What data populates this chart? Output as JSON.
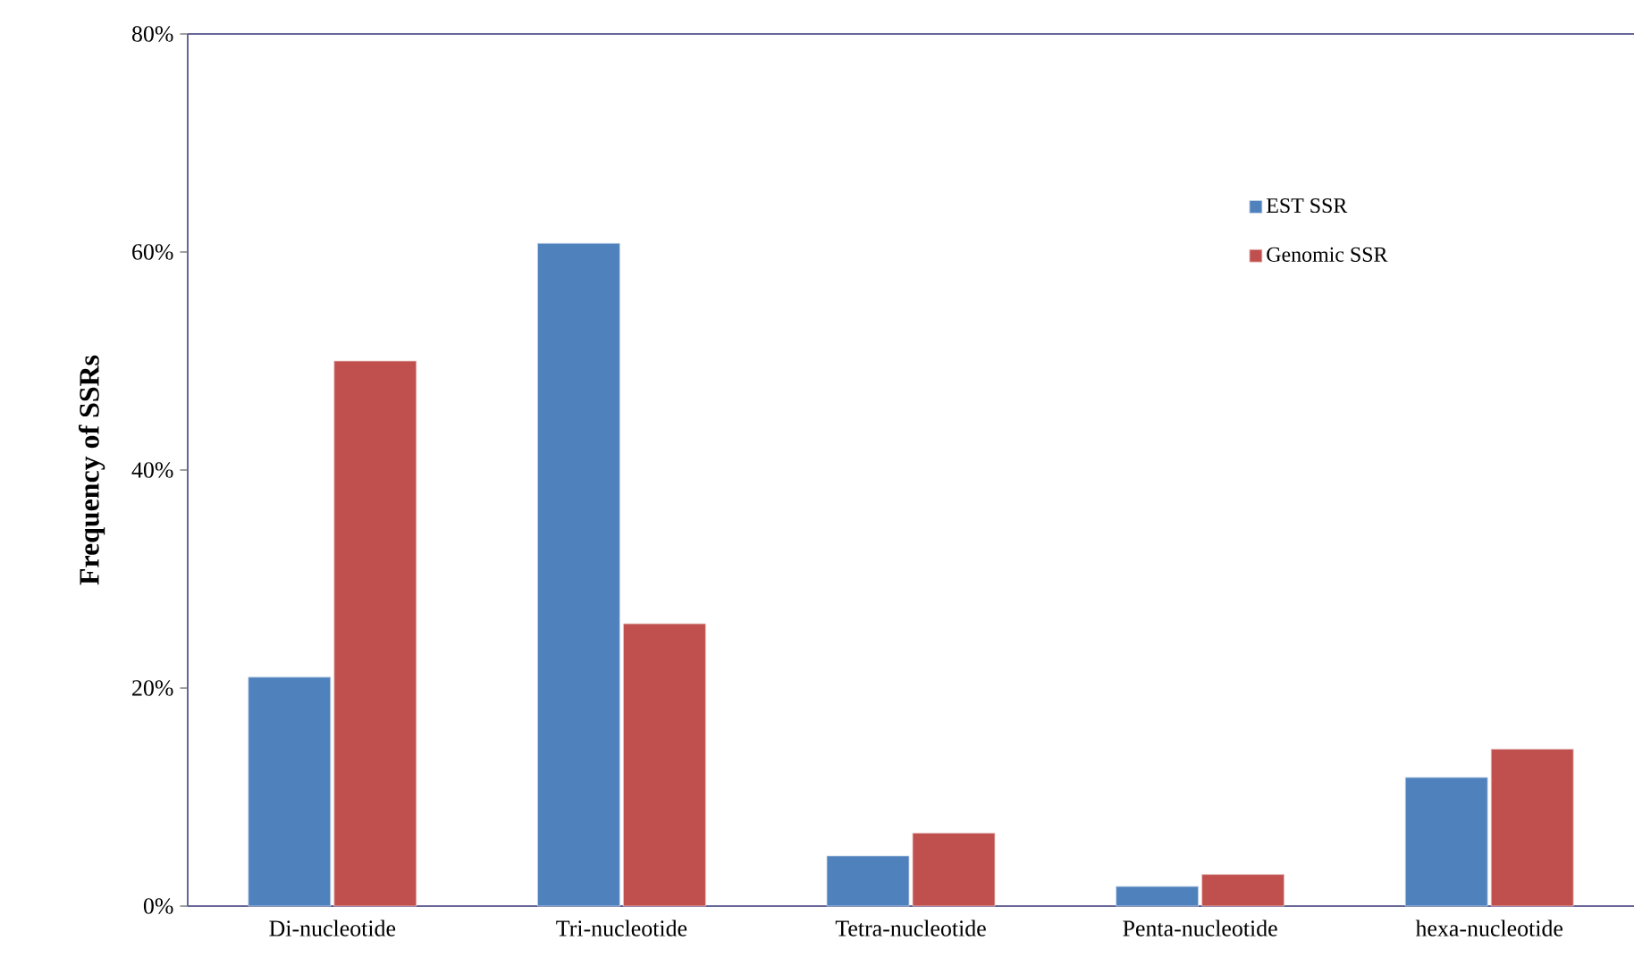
{
  "chart_data": {
    "type": "bar",
    "ylabel": "Frequency of  SSRs",
    "categories": [
      "Di-nucleotide",
      "Tri-nucleotide",
      "Tetra-nucleotide",
      "Penta-nucleotide",
      "hexa-nucleotide"
    ],
    "series": [
      {
        "name": "EST SSR",
        "color": "#4f81bd",
        "values": [
          21.0,
          60.8,
          4.6,
          1.8,
          11.8
        ]
      },
      {
        "name": "Genomic SSR",
        "color": "#c0504d",
        "values": [
          50,
          25.9,
          6.7,
          2.9,
          14.4
        ]
      }
    ],
    "ylim": [
      0,
      80
    ],
    "yticks": [
      {
        "value": 0,
        "label": "0%"
      },
      {
        "value": 20,
        "label": "20%"
      },
      {
        "value": 40,
        "label": "40%"
      },
      {
        "value": 60,
        "label": "60%"
      },
      {
        "value": 80,
        "label": "80%"
      }
    ],
    "legend": "top right"
  }
}
